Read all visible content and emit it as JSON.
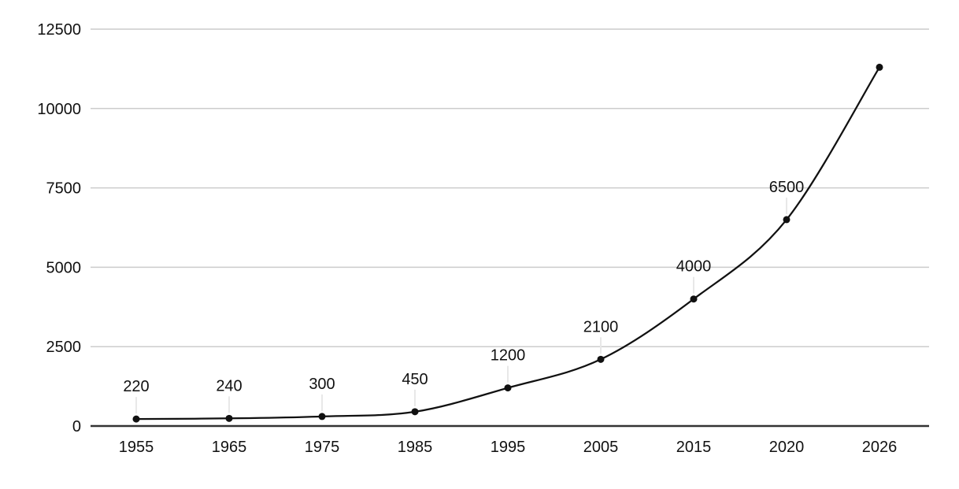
{
  "chart_data": {
    "type": "line",
    "title": "",
    "xlabel": "",
    "ylabel": "",
    "categories": [
      "1955",
      "1965",
      "1975",
      "1985",
      "1995",
      "2005",
      "2015",
      "2020",
      "2026"
    ],
    "values": [
      220,
      240,
      300,
      450,
      1200,
      2100,
      4000,
      6500,
      11300
    ],
    "point_labels": [
      "220",
      "240",
      "300",
      "450",
      "1200",
      "2100",
      "4000",
      "6500",
      ""
    ],
    "ylim": [
      0,
      12500
    ],
    "yticks": [
      0,
      2500,
      5000,
      7500,
      10000,
      12500
    ],
    "ytick_labels": [
      "0",
      "2500",
      "5000",
      "7500",
      "10000",
      "12500"
    ],
    "grid": true,
    "legend": "none",
    "smooth": true,
    "colors": {
      "line": "#111111",
      "point": "#111111",
      "gridline": "#cccccc",
      "baseline": "#333333",
      "label_stem": "#e8e8e8",
      "text": "#111111",
      "background": "#ffffff"
    }
  }
}
